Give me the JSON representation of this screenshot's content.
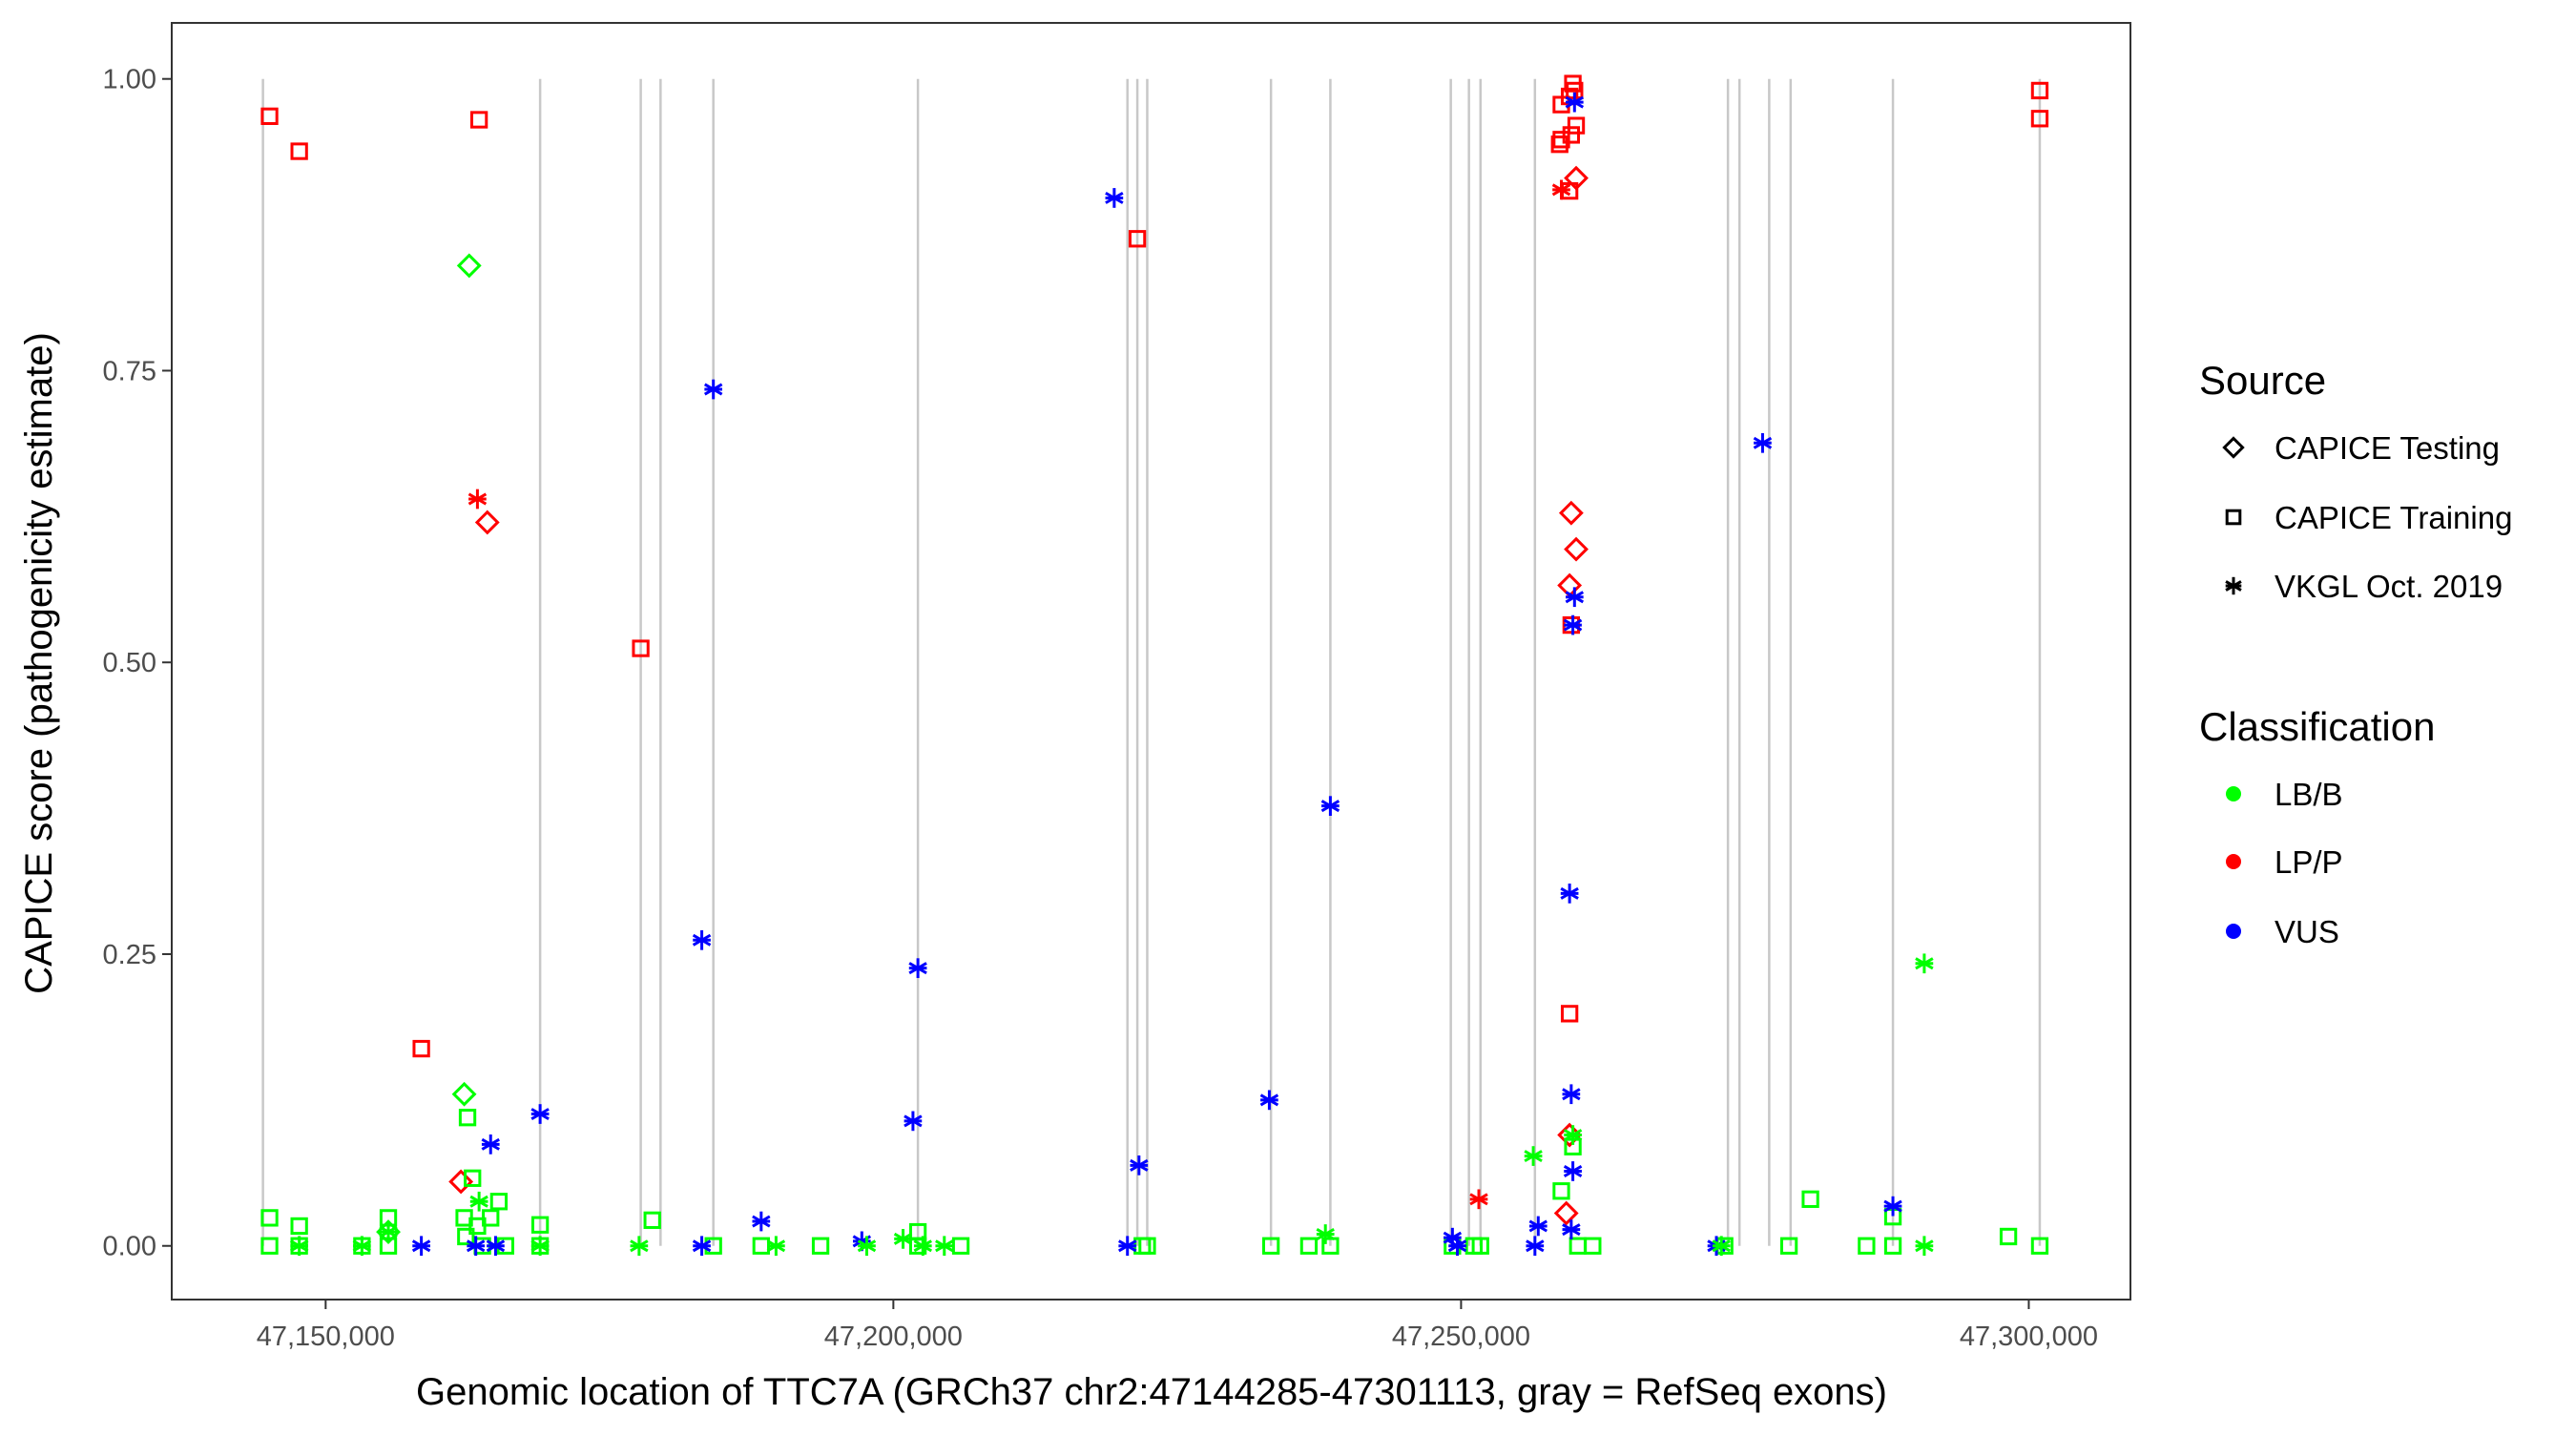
{
  "chart_data": {
    "type": "scatter",
    "xlabel": "Genomic location of TTC7A (GRCh37 chr2:47144285-47301113, gray = RefSeq exons)",
    "ylabel": "CAPICE score (pathogenicity estimate)",
    "xlim": [
      47136444,
      47308954
    ],
    "ylim": [
      -0.046,
      1.048
    ],
    "x_ticks": [
      47150000,
      47200000,
      47250000,
      47300000
    ],
    "x_tick_labels": [
      "47,150,000",
      "47,200,000",
      "47,250,000",
      "47,300,000"
    ],
    "y_ticks": [
      0,
      0.25,
      0.5,
      0.75,
      1.0
    ],
    "y_tick_labels": [
      "0.00",
      "0.25",
      "0.50",
      "0.75",
      "1.00"
    ],
    "grid": false,
    "legend_placement": "right",
    "exon_line_color": "#c8c8c8",
    "exons": [
      47144479,
      47168889,
      47177752,
      47179496,
      47184146,
      47202163,
      47220616,
      47221488,
      47222359,
      47233257,
      47238488,
      47249095,
      47250693,
      47251710,
      47256505,
      47273505,
      47274521,
      47277138,
      47279026,
      47288035,
      47300967
    ],
    "legend": {
      "source_title": "Source",
      "sources": [
        {
          "name": "CAPICE Testing",
          "shape": "diamond"
        },
        {
          "name": "CAPICE Training",
          "shape": "square"
        },
        {
          "name": "VKGL Oct. 2019",
          "shape": "asterisk"
        }
      ],
      "classification_title": "Classification",
      "classes": [
        {
          "name": "LB/B",
          "color": "#00ff00"
        },
        {
          "name": "LP/P",
          "color": "#ff0000"
        },
        {
          "name": "VUS",
          "color": "#0000ff"
        }
      ]
    },
    "series": [
      {
        "source": "CAPICE Testing",
        "classification": "LB/B",
        "points": [
          [
            47162641,
            0.84
          ],
          [
            47162205,
            0.13
          ],
          [
            47155521,
            0.012
          ]
        ]
      },
      {
        "source": "CAPICE Testing",
        "classification": "LP/P",
        "points": [
          [
            47161915,
            0.055
          ],
          [
            47164239,
            0.62
          ],
          [
            47260137,
            0.915
          ],
          [
            47259702,
            0.628
          ],
          [
            47260137,
            0.597
          ],
          [
            47259556,
            0.566
          ],
          [
            47259556,
            0.095
          ],
          [
            47259266,
            0.028
          ]
        ]
      },
      {
        "source": "CAPICE Training",
        "classification": "LP/P",
        "points": [
          [
            47145060,
            0.968
          ],
          [
            47147675,
            0.938
          ],
          [
            47163513,
            0.965
          ],
          [
            47158427,
            0.169
          ],
          [
            47177752,
            0.512
          ],
          [
            47221488,
            0.863
          ],
          [
            47259556,
            0.199
          ],
          [
            47259847,
            0.996
          ],
          [
            47259992,
            0.99
          ],
          [
            47259556,
            0.985
          ],
          [
            47258830,
            0.978
          ],
          [
            47260137,
            0.96
          ],
          [
            47259702,
            0.952
          ],
          [
            47258830,
            0.948
          ],
          [
            47258684,
            0.944
          ],
          [
            47259556,
            0.904
          ],
          [
            47259702,
            0.532
          ],
          [
            47300967,
            0.99
          ],
          [
            47300967,
            0.966
          ]
        ]
      },
      {
        "source": "CAPICE Training",
        "classification": "LB/B",
        "points": [
          [
            47145060,
            0.024
          ],
          [
            47145060,
            0
          ],
          [
            47147675,
            0.017
          ],
          [
            47147675,
            0
          ],
          [
            47153197,
            0
          ],
          [
            47155521,
            0.024
          ],
          [
            47155521,
            0
          ],
          [
            47162205,
            0.024
          ],
          [
            47162496,
            0.11
          ],
          [
            47162932,
            0.058
          ],
          [
            47165257,
            0.038
          ],
          [
            47164530,
            0.024
          ],
          [
            47163368,
            0.017
          ],
          [
            47162350,
            0.008
          ],
          [
            47163804,
            0
          ],
          [
            47165838,
            0
          ],
          [
            47168889,
            0.018
          ],
          [
            47168889,
            0
          ],
          [
            47178769,
            0.022
          ],
          [
            47184146,
            0
          ],
          [
            47188359,
            0
          ],
          [
            47193590,
            0
          ],
          [
            47202163,
            0.012
          ],
          [
            47202163,
            0
          ],
          [
            47205941,
            0
          ],
          [
            47221924,
            0
          ],
          [
            47222359,
            0
          ],
          [
            47233257,
            0
          ],
          [
            47236599,
            0
          ],
          [
            47238488,
            0
          ],
          [
            47249240,
            0
          ],
          [
            47251129,
            0
          ],
          [
            47251710,
            0
          ],
          [
            47258830,
            0.047
          ],
          [
            47259847,
            0.085
          ],
          [
            47260283,
            0
          ],
          [
            47261590,
            0
          ],
          [
            47273214,
            0
          ],
          [
            47278881,
            0
          ],
          [
            47280770,
            0.04
          ],
          [
            47285710,
            0
          ],
          [
            47288035,
            0
          ],
          [
            47288035,
            0.025
          ],
          [
            47298206,
            0.008
          ],
          [
            47300967,
            0
          ]
        ]
      },
      {
        "source": "VKGL Oct. 2019",
        "classification": "LP/P",
        "points": [
          [
            47163368,
            0.64
          ],
          [
            47258830,
            0.905
          ],
          [
            47251565,
            0.04
          ]
        ]
      },
      {
        "source": "VKGL Oct. 2019",
        "classification": "VUS",
        "points": [
          [
            47158427,
            0
          ],
          [
            47164530,
            0.087
          ],
          [
            47168889,
            0.113
          ],
          [
            47163222,
            0
          ],
          [
            47164966,
            0
          ],
          [
            47183128,
            0
          ],
          [
            47183128,
            0.262
          ],
          [
            47184146,
            0.734
          ],
          [
            47188359,
            0.021
          ],
          [
            47197223,
            0.004
          ],
          [
            47201727,
            0.107
          ],
          [
            47202163,
            0.238
          ],
          [
            47219453,
            0.898
          ],
          [
            47220616,
            0
          ],
          [
            47221633,
            0.069
          ],
          [
            47233112,
            0.125
          ],
          [
            47238488,
            0.377
          ],
          [
            47249240,
            0.007
          ],
          [
            47249676,
            0
          ],
          [
            47256505,
            0
          ],
          [
            47256796,
            0.017
          ],
          [
            47259556,
            0.302
          ],
          [
            47259702,
            0.13
          ],
          [
            47259847,
            0.064
          ],
          [
            47259992,
            0.556
          ],
          [
            47259847,
            0.532
          ],
          [
            47259992,
            0.98
          ],
          [
            47259702,
            0.014
          ],
          [
            47272488,
            0
          ],
          [
            47276556,
            0.688
          ],
          [
            47288035,
            0.034
          ]
        ]
      },
      {
        "source": "VKGL Oct. 2019",
        "classification": "LB/B",
        "points": [
          [
            47147675,
            0
          ],
          [
            47153197,
            0
          ],
          [
            47155521,
            0.012
          ],
          [
            47168889,
            0
          ],
          [
            47177607,
            0
          ],
          [
            47189667,
            0
          ],
          [
            47197658,
            0
          ],
          [
            47200855,
            0.006
          ],
          [
            47202599,
            0
          ],
          [
            47204488,
            0
          ],
          [
            47238052,
            0.01
          ],
          [
            47256360,
            0.077
          ],
          [
            47259847,
            0.095
          ],
          [
            47272924,
            0
          ],
          [
            47290796,
            0.242
          ],
          [
            47290796,
            0
          ],
          [
            47163513,
            0.038
          ]
        ]
      }
    ]
  }
}
